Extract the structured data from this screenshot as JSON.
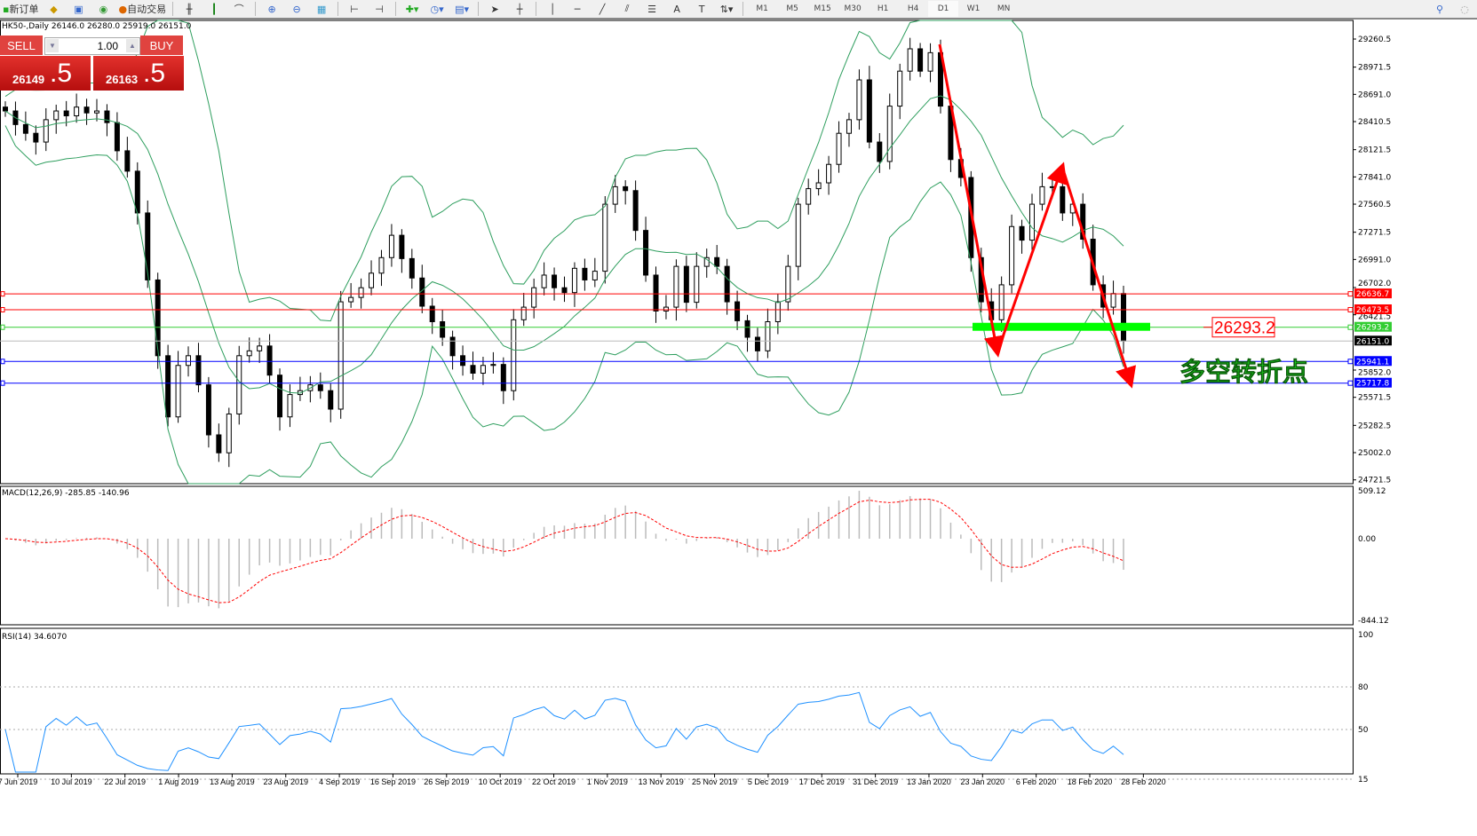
{
  "toolbar": {
    "new_order": "新订单",
    "auto_trading": "自动交易",
    "timeframes": [
      "M1",
      "M5",
      "M15",
      "M30",
      "H1",
      "H4",
      "D1",
      "W1",
      "MN"
    ],
    "active_timeframe": "D1",
    "icons": [
      "market-watch-icon",
      "navigator-icon",
      "signals-icon",
      "bar-chart-icon",
      "candlestick-icon",
      "line-chart-icon",
      "zoom-in-icon",
      "zoom-out-icon",
      "tile-windows-icon",
      "autoscroll-icon",
      "chart-shift-icon",
      "indicators-icon",
      "periods-icon",
      "templates-icon",
      "cursor-icon",
      "crosshair-icon",
      "vertical-line-icon",
      "horizontal-line-icon",
      "trendline-icon",
      "equidistant-channel-icon",
      "fibonacci-icon",
      "text-icon",
      "text-label-icon",
      "arrows-icon"
    ]
  },
  "chart_title": "HK50-,Daily  26146.0 26280.0 25919.0 26151.0",
  "trade": {
    "sell": "SELL",
    "buy": "BUY",
    "lot": "1.00",
    "sell_big": "26149",
    "sell_small": ".5",
    "buy_big": "26163",
    "buy_small": ".5"
  },
  "price_axis": [
    "29260.5",
    "28971.5",
    "28691.0",
    "28410.5",
    "28121.5",
    "27841.0",
    "27560.5",
    "27271.5",
    "26991.0",
    "26702.0",
    "26421.5",
    "25852.0",
    "25571.5",
    "25282.5",
    "25002.0",
    "24721.5"
  ],
  "levels": [
    {
      "value": "26636.7",
      "color": "#ff0000"
    },
    {
      "value": "26473.5",
      "color": "#ff0000"
    },
    {
      "value": "26293.2",
      "color": "#32cd32"
    },
    {
      "value": "26151.0",
      "color": "#000000"
    },
    {
      "value": "25941.1",
      "color": "#0000ff"
    },
    {
      "value": "25717.8",
      "color": "#0000ff"
    }
  ],
  "annotation_label": "26293.2",
  "annotation_text": "多空转折点",
  "macd": {
    "label": "MACD(12,26,9) -285.85 -140.96",
    "axis": [
      "509.12",
      "0.00",
      "-844.12"
    ]
  },
  "rsi": {
    "label": "RSI(14) 34.6070",
    "axis": [
      "100",
      "80",
      "50",
      "15"
    ]
  },
  "dates": [
    "7 Jun 2019",
    "10 Jul 2019",
    "22 Jul 2019",
    "1 Aug 2019",
    "13 Aug 2019",
    "23 Aug 2019",
    "4 Sep 2019",
    "16 Sep 2019",
    "26 Sep 2019",
    "10 Oct 2019",
    "22 Oct 2019",
    "1 Nov 2019",
    "13 Nov 2019",
    "25 Nov 2019",
    "5 Dec 2019",
    "17 Dec 2019",
    "31 Dec 2019",
    "13 Jan 2020",
    "23 Jan 2020",
    "6 Feb 2020",
    "18 Feb 2020",
    "28 Feb 2020"
  ],
  "chart_data": {
    "type": "candlestick",
    "symbol": "HK50-",
    "period": "Daily",
    "ylim": [
      24721.5,
      29400
    ],
    "closes": [
      28520,
      28380,
      28290,
      28200,
      28430,
      28520,
      28470,
      28560,
      28500,
      28520,
      28400,
      28110,
      27900,
      27470,
      26780,
      26000,
      25370,
      25900,
      26000,
      25700,
      25185,
      25000,
      25400,
      26000,
      26050,
      26100,
      25800,
      25370,
      25600,
      25640,
      25700,
      25640,
      25450,
      26555,
      26600,
      26700,
      26850,
      27010,
      27240,
      27000,
      26800,
      26510,
      26350,
      26190,
      26000,
      25900,
      25820,
      25900,
      25910,
      25640,
      26370,
      26500,
      26700,
      26830,
      26700,
      26650,
      26900,
      26780,
      26870,
      27560,
      27740,
      27700,
      27290,
      26830,
      26460,
      26500,
      26920,
      26550,
      26920,
      27010,
      26920,
      26555,
      26360,
      26190,
      26050,
      26350,
      26555,
      26920,
      27560,
      27720,
      27780,
      27970,
      28290,
      28430,
      28840,
      28200,
      28000,
      28570,
      28930,
      29160,
      28930,
      29120,
      28570,
      28020,
      27835,
      27010,
      26555,
      26370,
      26730,
      27330,
      27190,
      27560,
      27740,
      27740,
      27470,
      27560,
      27200,
      26730,
      26500,
      26640,
      26151
    ]
  }
}
